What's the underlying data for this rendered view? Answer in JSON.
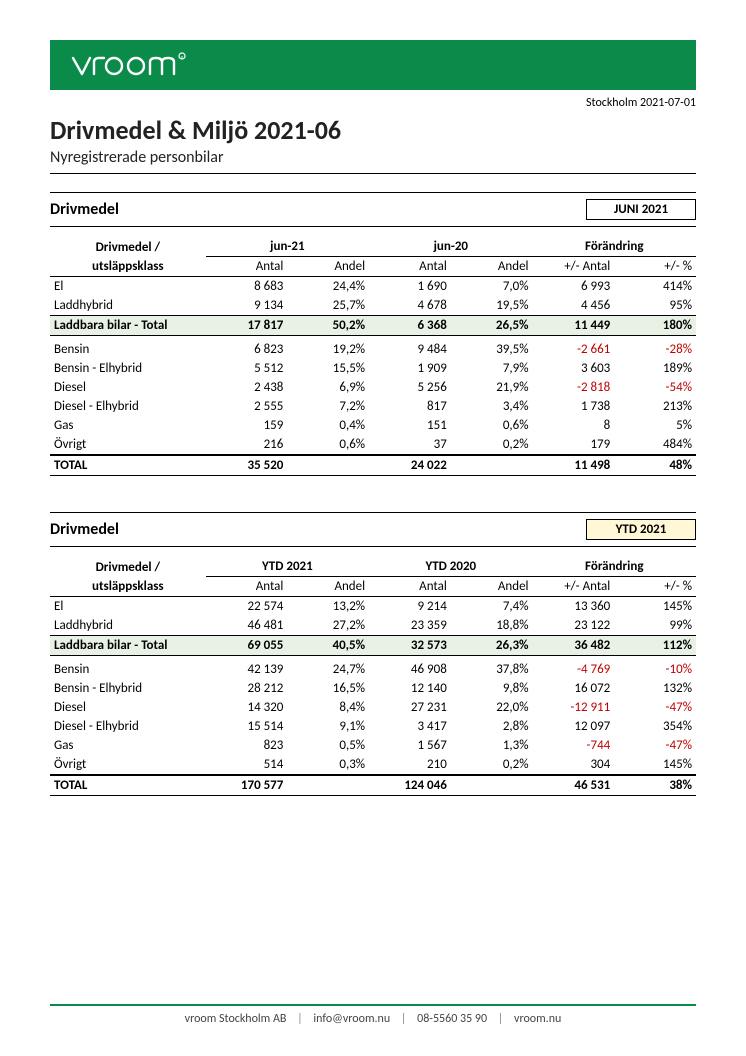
{
  "colors": {
    "brand": "#0b8b4a",
    "negative": "#c00000",
    "subtotal_bg": "#e8f2e4",
    "ytd_badge_bg": "#fff7d6"
  },
  "header": {
    "brand_text": "vroom",
    "dateline": "Stockholm 2021-07-01",
    "title": "Drivmedel & Miljö 2021-06",
    "subtitle": "Nyregistrerade personbilar"
  },
  "columns": {
    "group_label_line1": "Drivmedel /",
    "group_label_line2": "utsläppsklass",
    "period1_antal": "Antal",
    "period1_andel": "Andel",
    "period2_antal": "Antal",
    "period2_andel": "Andel",
    "change_label": "Förändring",
    "change_antal": "+/- Antal",
    "change_pct": "+/- %"
  },
  "section_month": {
    "title": "Drivmedel",
    "badge": "JUNI 2021",
    "period1_label": "jun-21",
    "period2_label": "jun-20",
    "rows": [
      {
        "label": "El",
        "a1": "8 683",
        "p1": "24,4%",
        "a2": "1 690",
        "p2": "7,0%",
        "d": "6 993",
        "dp": "414%",
        "neg": false
      },
      {
        "label": "Laddhybrid",
        "a1": "9 134",
        "p1": "25,7%",
        "a2": "4 678",
        "p2": "19,5%",
        "d": "4 456",
        "dp": "95%",
        "neg": false
      }
    ],
    "subtotal": {
      "label": "Laddbara bilar - Total",
      "a1": "17 817",
      "p1": "50,2%",
      "a2": "6 368",
      "p2": "26,5%",
      "d": "11 449",
      "dp": "180%"
    },
    "rows2": [
      {
        "label": "Bensin",
        "a1": "6 823",
        "p1": "19,2%",
        "a2": "9 484",
        "p2": "39,5%",
        "d": "-2 661",
        "dp": "-28%",
        "neg": true
      },
      {
        "label": "Bensin - Elhybrid",
        "a1": "5 512",
        "p1": "15,5%",
        "a2": "1 909",
        "p2": "7,9%",
        "d": "3 603",
        "dp": "189%",
        "neg": false
      },
      {
        "label": "Diesel",
        "a1": "2 438",
        "p1": "6,9%",
        "a2": "5 256",
        "p2": "21,9%",
        "d": "-2 818",
        "dp": "-54%",
        "neg": true
      },
      {
        "label": "Diesel - Elhybrid",
        "a1": "2 555",
        "p1": "7,2%",
        "a2": "817",
        "p2": "3,4%",
        "d": "1 738",
        "dp": "213%",
        "neg": false
      },
      {
        "label": "Gas",
        "a1": "159",
        "p1": "0,4%",
        "a2": "151",
        "p2": "0,6%",
        "d": "8",
        "dp": "5%",
        "neg": false
      },
      {
        "label": "Övrigt",
        "a1": "216",
        "p1": "0,6%",
        "a2": "37",
        "p2": "0,2%",
        "d": "179",
        "dp": "484%",
        "neg": false
      }
    ],
    "total": {
      "label": "TOTAL",
      "a1": "35 520",
      "p1": "",
      "a2": "24 022",
      "p2": "",
      "d": "11 498",
      "dp": "48%"
    }
  },
  "section_ytd": {
    "title": "Drivmedel",
    "badge": "YTD 2021",
    "period1_label": "YTD 2021",
    "period2_label": "YTD 2020",
    "rows": [
      {
        "label": "El",
        "a1": "22 574",
        "p1": "13,2%",
        "a2": "9 214",
        "p2": "7,4%",
        "d": "13 360",
        "dp": "145%",
        "neg": false
      },
      {
        "label": "Laddhybrid",
        "a1": "46 481",
        "p1": "27,2%",
        "a2": "23 359",
        "p2": "18,8%",
        "d": "23 122",
        "dp": "99%",
        "neg": false
      }
    ],
    "subtotal": {
      "label": "Laddbara bilar - Total",
      "a1": "69 055",
      "p1": "40,5%",
      "a2": "32 573",
      "p2": "26,3%",
      "d": "36 482",
      "dp": "112%"
    },
    "rows2": [
      {
        "label": "Bensin",
        "a1": "42 139",
        "p1": "24,7%",
        "a2": "46 908",
        "p2": "37,8%",
        "d": "-4 769",
        "dp": "-10%",
        "neg": true
      },
      {
        "label": "Bensin - Elhybrid",
        "a1": "28 212",
        "p1": "16,5%",
        "a2": "12 140",
        "p2": "9,8%",
        "d": "16 072",
        "dp": "132%",
        "neg": false
      },
      {
        "label": "Diesel",
        "a1": "14 320",
        "p1": "8,4%",
        "a2": "27 231",
        "p2": "22,0%",
        "d": "-12 911",
        "dp": "-47%",
        "neg": true
      },
      {
        "label": "Diesel - Elhybrid",
        "a1": "15 514",
        "p1": "9,1%",
        "a2": "3 417",
        "p2": "2,8%",
        "d": "12 097",
        "dp": "354%",
        "neg": false
      },
      {
        "label": "Gas",
        "a1": "823",
        "p1": "0,5%",
        "a2": "1 567",
        "p2": "1,3%",
        "d": "-744",
        "dp": "-47%",
        "neg": true
      },
      {
        "label": "Övrigt",
        "a1": "514",
        "p1": "0,3%",
        "a2": "210",
        "p2": "0,2%",
        "d": "304",
        "dp": "145%",
        "neg": false
      }
    ],
    "total": {
      "label": "TOTAL",
      "a1": "170 577",
      "p1": "",
      "a2": "124 046",
      "p2": "",
      "d": "46 531",
      "dp": "38%"
    }
  },
  "footer": {
    "company": "vroom Stockholm AB",
    "email": "info@vroom.nu",
    "phone": "08-5560 35 90",
    "web": "vroom.nu"
  }
}
